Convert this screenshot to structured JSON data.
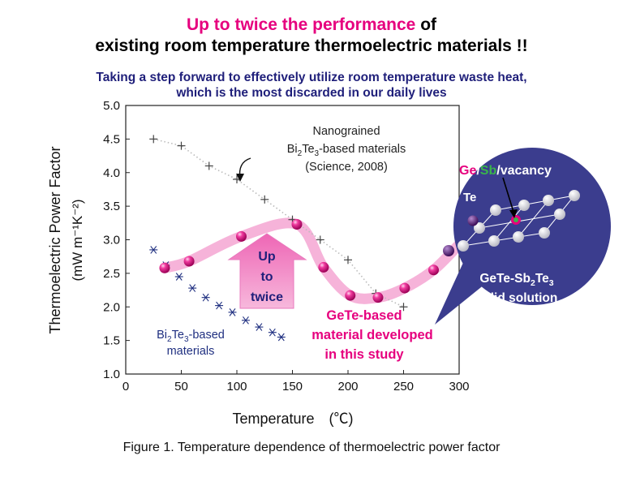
{
  "headline": {
    "line1_pink": "Up to twice the performance",
    "line1_rest": "of",
    "line2": "existing room temperature thermoelectric materials !!",
    "sub1": "Taking a step forward to effectively utilize room temperature waste heat,",
    "sub2": "which is the most discarded in our daily lives"
  },
  "caption": "Figure 1. Temperature dependence of thermoelectric power factor",
  "chart_data": {
    "type": "line",
    "xlabel": "Temperature　(℃)",
    "ylabel_line1": "Thermoelectric Power Factor",
    "ylabel_line2": "(mW m⁻¹K⁻²)",
    "xlim": [
      0,
      300
    ],
    "ylim": [
      1.0,
      5.0
    ],
    "x_ticks": [
      0,
      50,
      100,
      150,
      200,
      250,
      300
    ],
    "y_ticks": [
      1.0,
      1.5,
      2.0,
      2.5,
      3.0,
      3.5,
      4.0,
      4.5,
      5.0
    ],
    "grid": false,
    "series": [
      {
        "name": "GeTe-based material developed in this study",
        "marker": "ball",
        "color": "#e6007e",
        "x": [
          35,
          57,
          104,
          154,
          178,
          202,
          227,
          251,
          277
        ],
        "y": [
          2.58,
          2.68,
          3.05,
          3.23,
          2.59,
          2.17,
          2.14,
          2.28,
          2.55
        ]
      },
      {
        "name": "Nanograined Bi2Te3-based materials (Science, 2008)",
        "marker": "plus",
        "color": "#444444",
        "x": [
          25,
          50,
          75,
          100,
          125,
          150,
          175,
          200,
          225,
          250
        ],
        "y": [
          4.5,
          4.4,
          4.1,
          3.9,
          3.6,
          3.3,
          3.0,
          2.7,
          2.2,
          2.0
        ]
      },
      {
        "name": "Bi2Te3-based materials",
        "marker": "asterisk",
        "color": "#1f2f80",
        "x": [
          25,
          36,
          48,
          60,
          72,
          84,
          96,
          108,
          120,
          132,
          140
        ],
        "y": [
          2.85,
          2.62,
          2.45,
          2.28,
          2.14,
          2.02,
          1.92,
          1.8,
          1.7,
          1.62,
          1.55
        ]
      }
    ],
    "annotations": {
      "nano_line1": "Nanograined",
      "nano_line2_main": "Bi",
      "nano_line2_sub1": "2",
      "nano_line2_mid": "Te",
      "nano_line2_sub2": "3",
      "nano_line2_tail": "-based materials",
      "nano_line3": "(Science, 2008)",
      "bi_line1_main": "Bi",
      "bi_line1_sub1": "2",
      "bi_line1_mid": "Te",
      "bi_line1_sub2": "3",
      "bi_line1_tail": "-based",
      "bi_line2": "materials",
      "gete_line1": "GeTe-based",
      "gete_line2": "material developed",
      "gete_line3": "in this study",
      "arrow_line1": "Up",
      "arrow_line2": "to",
      "arrow_line3": "twice"
    },
    "inset": {
      "site_ge": "Ge",
      "sep1": "/",
      "site_sb": "Sb",
      "sep2": "/vacancy",
      "te_label": "Te",
      "solution_line1_main": "GeTe-Sb",
      "solution_line1_sub1": "2",
      "solution_line1_mid": "Te",
      "solution_line1_sub2": "3",
      "solution_line2": "solid solution",
      "colors": {
        "bubble": "#3b3d8e",
        "ge": "#e6007e",
        "sb": "#39b54a"
      }
    }
  }
}
